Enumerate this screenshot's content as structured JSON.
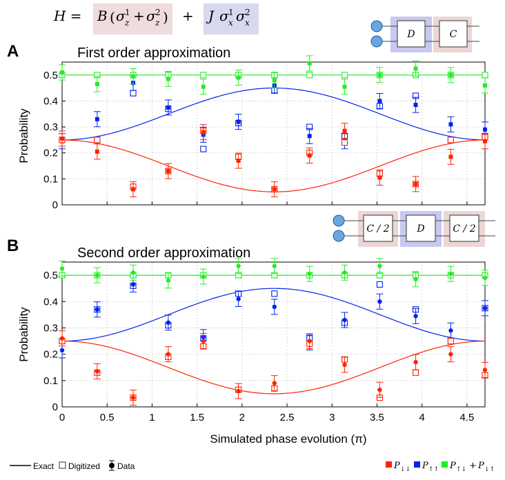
{
  "equation": {
    "lhs": "H =",
    "term1": {
      "coef": "B",
      "op1": "σ",
      "sup1": "1",
      "sub1": "z",
      "plus": "+",
      "op2": "σ",
      "sup2": "2",
      "sub2": "z",
      "color": "#efdcdc"
    },
    "plus": "+",
    "term2": {
      "coef": "J",
      "op1": "σ",
      "sup1": "1",
      "sub1": "x",
      "op2": "σ",
      "sup2": "2",
      "sub2": "x",
      "color": "#d8d8f0"
    }
  },
  "circuits": {
    "first": {
      "gates": [
        {
          "label": "D",
          "color": "#c8c8f0"
        },
        {
          "label": "C",
          "color": "#ecd6d6"
        }
      ]
    },
    "second": {
      "gates": [
        {
          "label": "C / 2",
          "color": "#ecd6d6"
        },
        {
          "label": "D",
          "color": "#c8c8f0"
        },
        {
          "label": "C / 2",
          "color": "#ecd6d6"
        }
      ]
    }
  },
  "colors": {
    "down_down": "#ff2200",
    "up_up": "#0022ee",
    "sum": "#22ee22",
    "exact": "#000000"
  },
  "chart_data": [
    {
      "type": "scatter",
      "panel": "A",
      "title": "First order approximation",
      "xlabel": "",
      "ylabel": "Probability",
      "xlim": [
        0,
        4.7
      ],
      "ylim": [
        0,
        0.55
      ],
      "xticks": [],
      "yticks": [
        "0",
        "0.1",
        "0.2",
        "0.3",
        "0.4",
        "0.5"
      ],
      "grid": true,
      "x": [
        0,
        0.39,
        0.79,
        1.18,
        1.57,
        1.96,
        2.36,
        2.75,
        3.14,
        3.53,
        3.93,
        4.32,
        4.7
      ],
      "series": [
        {
          "key": "up_up",
          "data": [
            0.245,
            0.33,
            0.47,
            0.375,
            0.27,
            0.32,
            0.46,
            0.265,
            0.245,
            0.4,
            0.385,
            0.31,
            0.29
          ],
          "digitized": [
            0.25,
            0.25,
            0.43,
            0.37,
            0.215,
            0.315,
            0.44,
            0.3,
            0.265,
            0.38,
            0.42,
            0.25,
            0.265
          ]
        },
        {
          "key": "down_down",
          "data": [
            0.255,
            0.205,
            0.06,
            0.13,
            0.28,
            0.17,
            0.06,
            0.19,
            0.285,
            0.105,
            0.08,
            0.185,
            0.245
          ],
          "digitized": [
            0.25,
            0.25,
            0.07,
            0.13,
            0.285,
            0.185,
            0.06,
            0.2,
            0.24,
            0.12,
            0.08,
            0.25,
            0.26
          ]
        },
        {
          "key": "sum",
          "data": [
            0.51,
            0.465,
            0.495,
            0.485,
            0.455,
            0.49,
            0.48,
            0.545,
            0.455,
            0.5,
            0.525,
            0.5,
            0.46
          ],
          "digitized": [
            0.5,
            0.5,
            0.5,
            0.5,
            0.5,
            0.5,
            0.5,
            0.5,
            0.5,
            0.5,
            0.5,
            0.5,
            0.5
          ]
        }
      ],
      "exact": {
        "up_up_offset": 0.35,
        "down_down_offset": 0.15,
        "amplitude": 0.1,
        "sum": 0.5
      }
    },
    {
      "type": "scatter",
      "panel": "B",
      "title": "Second order approximation",
      "xlabel": "Simulated phase evolution (π)",
      "ylabel": "Probability",
      "xlim": [
        0,
        4.7
      ],
      "ylim": [
        0,
        0.55
      ],
      "xticks": [
        "0",
        "0.5",
        "1",
        "1.5",
        "2",
        "2.5",
        "3",
        "3.5",
        "4",
        "4.5"
      ],
      "yticks": [
        "0",
        "0.1",
        "0.2",
        "0.3",
        "0.4",
        "0.5"
      ],
      "grid": true,
      "x": [
        0,
        0.39,
        0.79,
        1.18,
        1.57,
        1.96,
        2.36,
        2.75,
        3.14,
        3.53,
        3.93,
        4.32,
        4.7
      ],
      "series": [
        {
          "key": "up_up",
          "data": [
            0.215,
            0.37,
            0.465,
            0.32,
            0.265,
            0.41,
            0.38,
            0.245,
            0.33,
            0.4,
            0.345,
            0.29,
            0.375
          ],
          "digitized": [
            0.25,
            0.37,
            0.46,
            0.31,
            0.26,
            0.43,
            0.43,
            0.26,
            0.32,
            0.465,
            0.37,
            0.25,
            0.375
          ]
        },
        {
          "key": "down_down",
          "data": [
            0.26,
            0.135,
            0.035,
            0.2,
            0.25,
            0.06,
            0.09,
            0.25,
            0.16,
            0.065,
            0.17,
            0.2,
            0.14
          ],
          "digitized": [
            0.25,
            0.13,
            0.035,
            0.19,
            0.23,
            0.065,
            0.07,
            0.24,
            0.18,
            0.035,
            0.13,
            0.25,
            0.12
          ]
        },
        {
          "key": "sum",
          "data": [
            0.525,
            0.5,
            0.51,
            0.48,
            0.495,
            0.535,
            0.535,
            0.505,
            0.51,
            0.535,
            0.485,
            0.505,
            0.49
          ],
          "digitized": [
            0.5,
            0.5,
            0.5,
            0.5,
            0.5,
            0.5,
            0.5,
            0.5,
            0.5,
            0.5,
            0.5,
            0.5,
            0.5
          ]
        }
      ],
      "exact": {
        "up_up_offset": 0.35,
        "down_down_offset": 0.15,
        "amplitude": 0.1,
        "sum": 0.5
      }
    }
  ],
  "legend": {
    "exact": "Exact",
    "digitized": "Digitized",
    "data": "Data",
    "down_down": {
      "p": "P",
      "sub": "↓↓"
    },
    "up_up": {
      "p": "P",
      "sub": "↑↑"
    },
    "sum": {
      "p1": "P",
      "sub1": "↑↓",
      "plus": "+",
      "p2": "P",
      "sub2": "↓↑"
    }
  }
}
